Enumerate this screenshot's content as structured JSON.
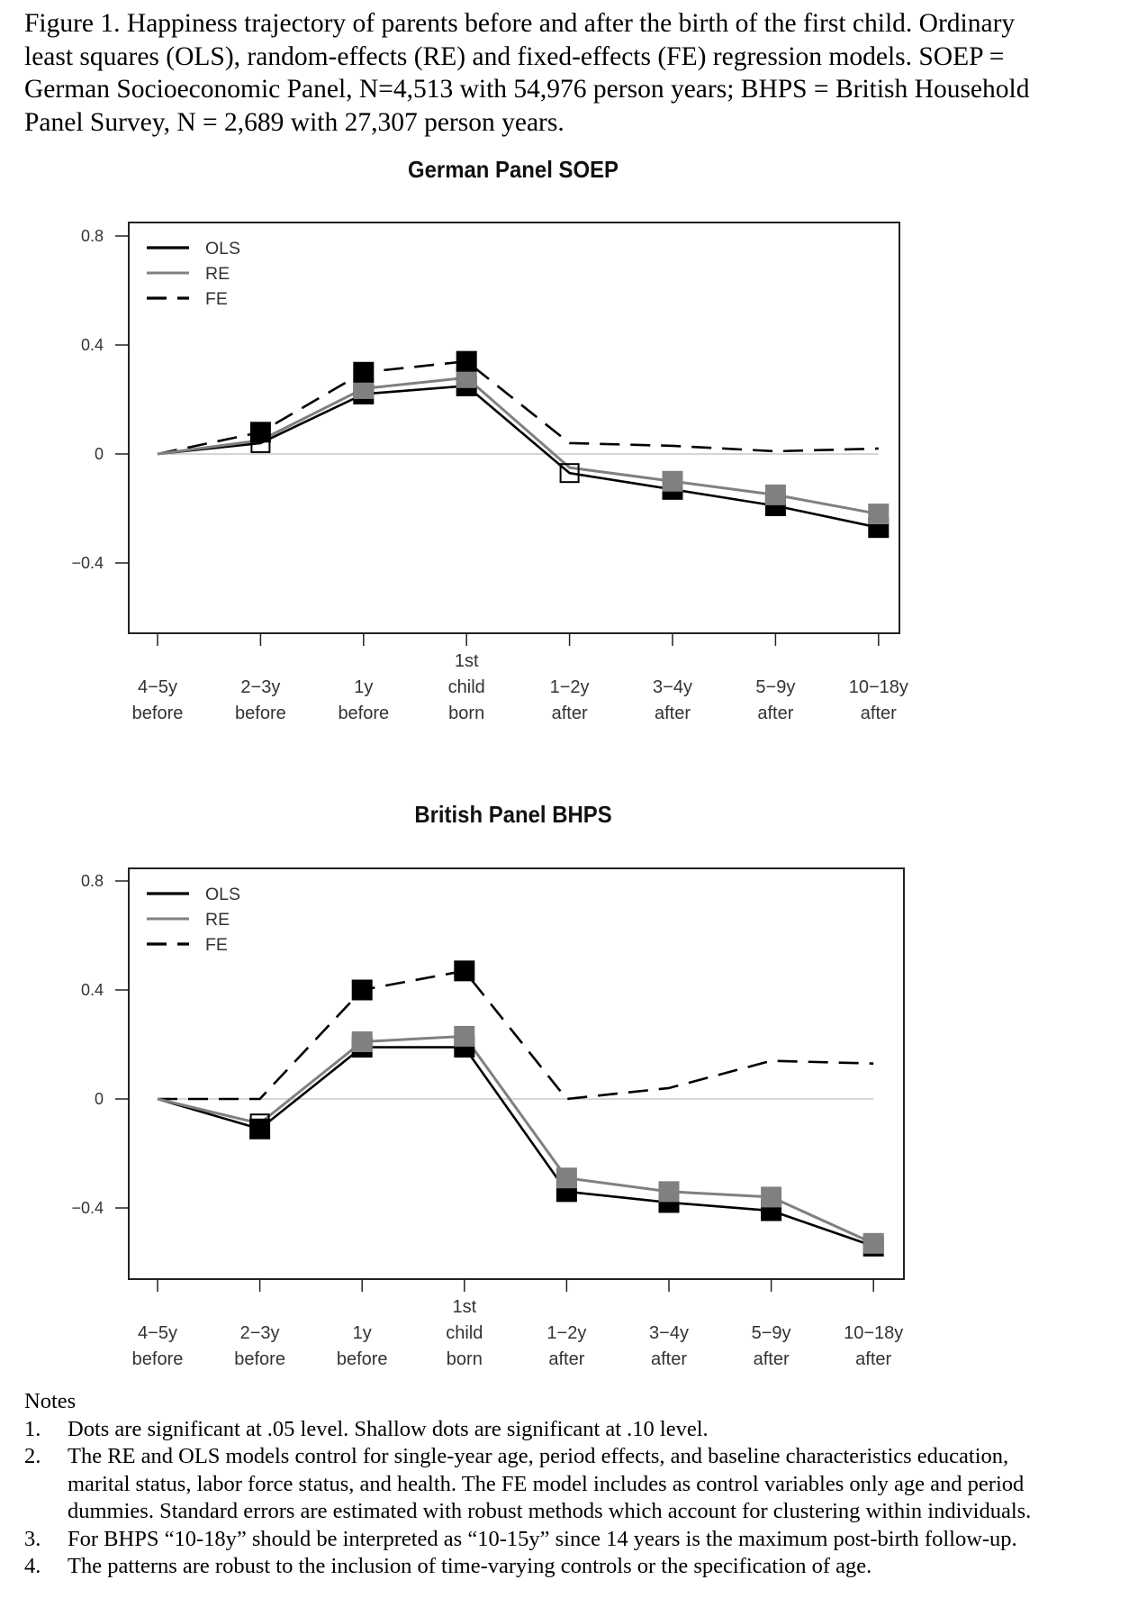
{
  "caption": {
    "lines": [
      "Figure 1. Happiness trajectory of parents before and after the birth of the first child. Ordinary",
      "least squares (OLS), random-effects (RE) and fixed-effects (FE) regression models. SOEP =",
      "German Socioeconomic Panel, N=4,513 with 54,976 person years; BHPS = British Household",
      "Panel Survey, N = 2,689 with 27,307 person years."
    ]
  },
  "chart_data": [
    {
      "type": "line",
      "title": "German Panel SOEP",
      "xlabel": "",
      "ylabel": "",
      "categories": [
        [
          "4−5y",
          "before"
        ],
        [
          "2−3y",
          "before"
        ],
        [
          "1y",
          "before"
        ],
        [
          "1st",
          "child",
          "born"
        ],
        [
          "1−2y",
          "after"
        ],
        [
          "3−4y",
          "after"
        ],
        [
          "5−9y",
          "after"
        ],
        [
          "10−18y",
          "after"
        ]
      ],
      "yticks": [
        "0.8",
        "0.4",
        "0",
        "−0.4"
      ],
      "ytick_values": [
        0.8,
        0.4,
        0,
        -0.4
      ],
      "ylim": [
        -0.68,
        0.86
      ],
      "reference_line": 0,
      "legend": {
        "position": "top-left",
        "entries": [
          "OLS",
          "RE",
          "FE"
        ]
      },
      "series": [
        {
          "name": "FE",
          "color": "#000000",
          "style": "dashed",
          "values": [
            0,
            0.08,
            0.3,
            0.34,
            0.04,
            0.03,
            0.01,
            0.02
          ],
          "markers": [
            "none",
            "filled",
            "filled",
            "filled",
            "none",
            "none",
            "none",
            "none"
          ]
        },
        {
          "name": "OLS",
          "color": "#000000",
          "style": "solid",
          "values": [
            0,
            0.04,
            0.22,
            0.25,
            -0.07,
            -0.13,
            -0.19,
            -0.27
          ],
          "markers": [
            "none",
            "open",
            "filled",
            "filled",
            "open",
            "filled",
            "filled",
            "filled"
          ]
        },
        {
          "name": "RE",
          "color": "#808080",
          "style": "solid",
          "values": [
            0,
            0.05,
            0.24,
            0.28,
            -0.05,
            -0.1,
            -0.15,
            -0.22
          ],
          "markers": [
            "none",
            "none",
            "filled",
            "filled",
            "none",
            "filled",
            "filled",
            "filled"
          ]
        }
      ]
    },
    {
      "type": "line",
      "title": "British Panel BHPS",
      "xlabel": "",
      "ylabel": "",
      "categories": [
        [
          "4−5y",
          "before"
        ],
        [
          "2−3y",
          "before"
        ],
        [
          "1y",
          "before"
        ],
        [
          "1st",
          "child",
          "born"
        ],
        [
          "1−2y",
          "after"
        ],
        [
          "3−4y",
          "after"
        ],
        [
          "5−9y",
          "after"
        ],
        [
          "10−18y",
          "after"
        ]
      ],
      "yticks": [
        "0.8",
        "0.4",
        "0",
        "−0.4"
      ],
      "ytick_values": [
        0.8,
        0.4,
        0,
        -0.4
      ],
      "ylim": [
        -0.66,
        0.84
      ],
      "reference_line": 0,
      "legend": {
        "position": "top-left",
        "entries": [
          "OLS",
          "RE",
          "FE"
        ]
      },
      "series": [
        {
          "name": "FE",
          "color": "#000000",
          "style": "dashed",
          "values": [
            0,
            0.0,
            0.4,
            0.47,
            0.0,
            0.04,
            0.14,
            0.13
          ],
          "markers": [
            "none",
            "none",
            "filled",
            "filled",
            "none",
            "none",
            "none",
            "none"
          ]
        },
        {
          "name": "OLS",
          "color": "#000000",
          "style": "solid",
          "values": [
            0,
            -0.11,
            0.19,
            0.19,
            -0.34,
            -0.38,
            -0.41,
            -0.54
          ],
          "markers": [
            "none",
            "filled",
            "filled",
            "filled",
            "filled",
            "filled",
            "filled",
            "filled"
          ]
        },
        {
          "name": "RE",
          "color": "#808080",
          "style": "solid",
          "values": [
            0,
            -0.09,
            0.21,
            0.23,
            -0.29,
            -0.34,
            -0.36,
            -0.53
          ],
          "markers": [
            "none",
            "open",
            "filled",
            "filled",
            "filled",
            "filled",
            "filled",
            "filled"
          ]
        }
      ]
    }
  ],
  "notes": {
    "heading": "Notes",
    "items": [
      {
        "num": "1.",
        "lines": [
          "Dots are significant at .05 level. Shallow dots are significant at .10 level."
        ]
      },
      {
        "num": "2.",
        "lines": [
          "The RE and OLS models control for single-year age, period effects, and baseline characteristics education,",
          "marital status, labor force status, and health. The FE model includes as control variables only age and period",
          "dummies. Standard errors are estimated with robust methods which account for clustering within individuals."
        ]
      },
      {
        "num": "3.",
        "lines": [
          "For BHPS “10-18y” should be interpreted as “10-15y” since 14 years is the maximum post-birth follow-up."
        ]
      },
      {
        "num": "4.",
        "lines": [
          "The patterns are robust to the inclusion of time-varying controls or the specification of age."
        ]
      }
    ]
  }
}
